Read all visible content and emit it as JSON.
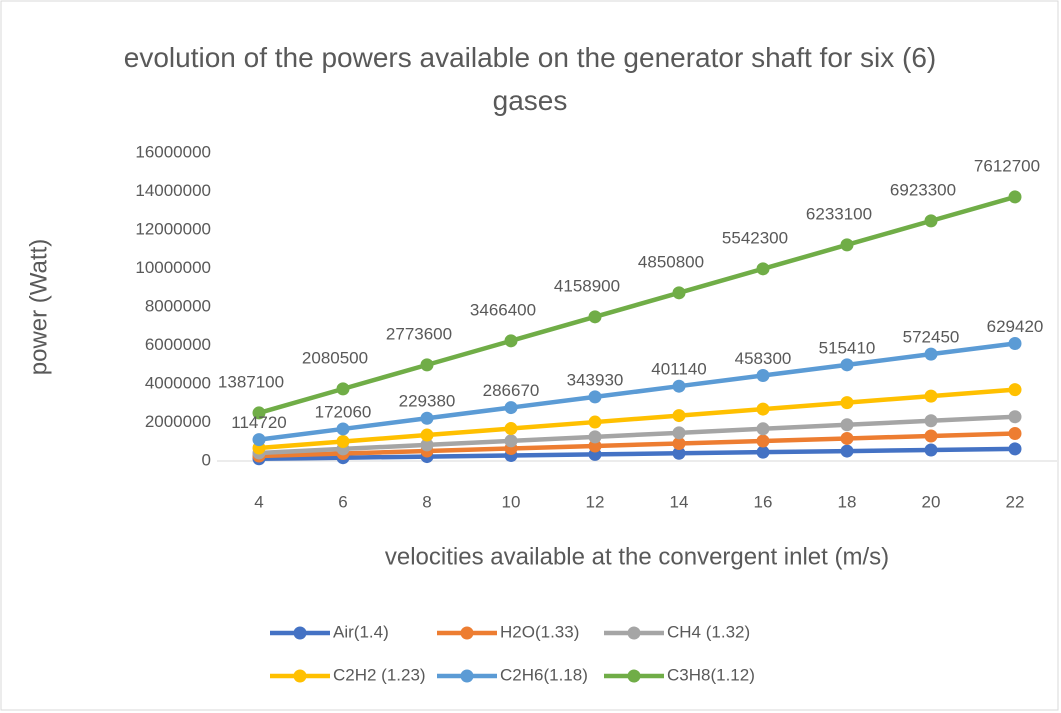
{
  "chart_data": {
    "type": "line",
    "stacked": true,
    "title": "evolution of the powers available on the generator shaft for six (6) gases",
    "y_label": "power (Watt)",
    "x_label": "velocities available at the convergent inlet (m/s)",
    "categories": [
      4,
      6,
      8,
      10,
      12,
      14,
      16,
      18,
      20,
      22
    ],
    "series": [
      {
        "name": "Air(1.4)",
        "color": "#4472c4",
        "data_labels": true,
        "values": [
          114720,
          172060,
          229380,
          286670,
          343930,
          401140,
          458300,
          515410,
          572450,
          629420
        ]
      },
      {
        "name": "H2O(1.33)",
        "color": "#ed7d31",
        "values": [
          145600,
          218400,
          291200,
          364000,
          436800,
          509600,
          582400,
          655200,
          728000,
          800800
        ]
      },
      {
        "name": "CH4 (1.32)",
        "color": "#a5a5a5",
        "values": [
          158000,
          237000,
          316000,
          395000,
          474000,
          553000,
          632000,
          711000,
          790000,
          869000
        ]
      },
      {
        "name": "C2H2 (1.23)",
        "color": "#ffc000",
        "values": [
          256000,
          384000,
          512000,
          640000,
          768000,
          896000,
          1024000,
          1152000,
          1280000,
          1408000
        ]
      },
      {
        "name": "C2H6(1.18)",
        "color": "#5b9bd5",
        "values": [
          436000,
          654000,
          872000,
          1090000,
          1308000,
          1526000,
          1744000,
          1962000,
          2180000,
          2398000
        ]
      },
      {
        "name": "C3H8(1.12)",
        "color": "#70ad47",
        "data_labels": true,
        "values": [
          1387100,
          2080500,
          2773600,
          3466400,
          4158900,
          4850800,
          5542300,
          6233100,
          6923300,
          7612700
        ]
      }
    ],
    "ylim": [
      0,
      16000000
    ],
    "yticks": [
      0,
      2000000,
      4000000,
      6000000,
      8000000,
      10000000,
      12000000,
      14000000,
      16000000
    ],
    "grid": false,
    "legend": "bottom"
  }
}
